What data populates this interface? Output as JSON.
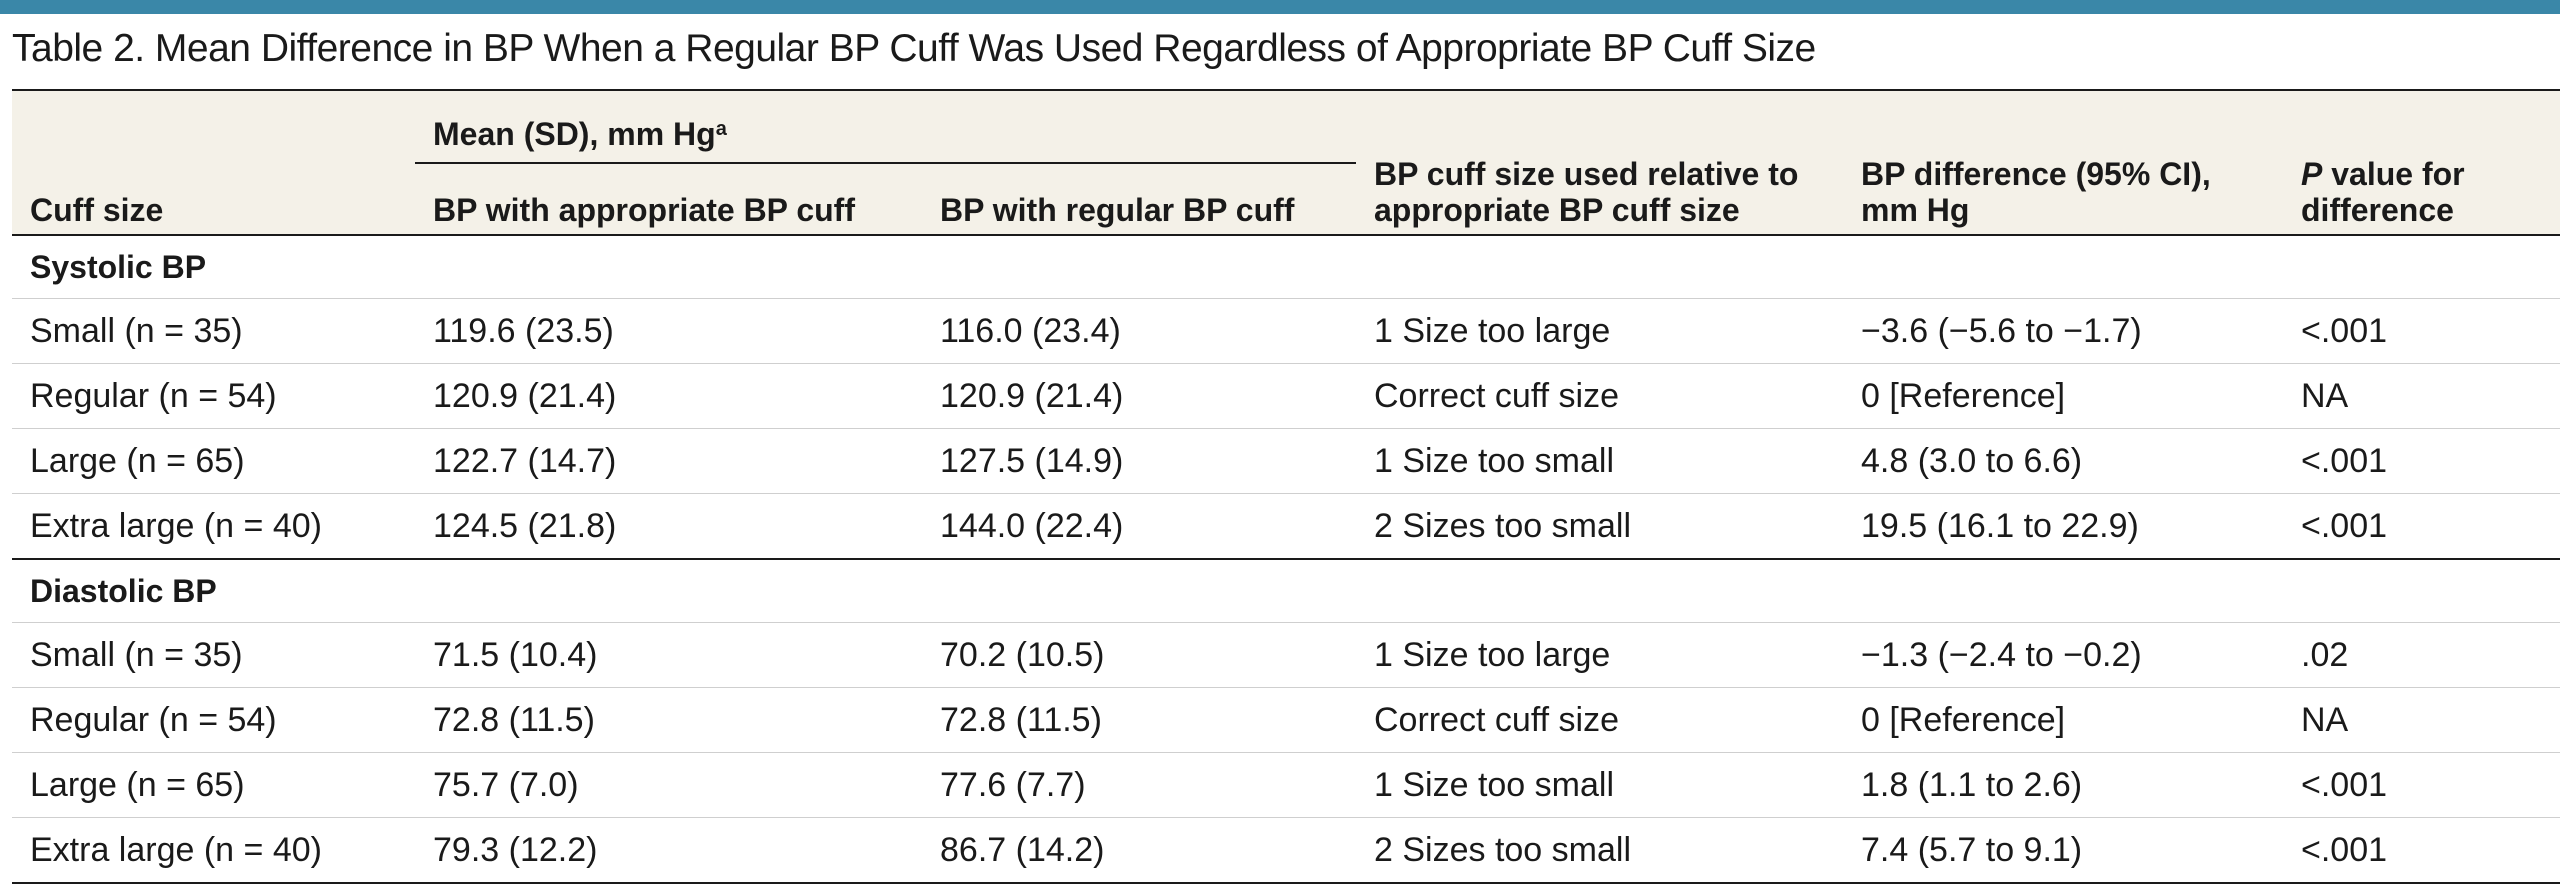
{
  "caption": "Table 2. Mean Difference in BP When a Regular BP Cuff Was Used Regardless of Appropriate BP Cuff Size",
  "header": {
    "cuff_size": "Cuff size",
    "mean_sd": "Mean (SD), mm Hg",
    "mean_sd_footnote": "a",
    "bp_appropriate": "BP with appropriate BP cuff",
    "bp_regular": "BP with regular BP cuff",
    "relative": "BP cuff size used relative to appropriate BP cuff size",
    "difference": "BP difference (95% CI), mm Hg",
    "p_value_italic": "P",
    "p_value_rest": " value for difference"
  },
  "sections": [
    {
      "title": "Systolic BP",
      "rows": [
        [
          "Small (n = 35)",
          "119.6 (23.5)",
          "116.0 (23.4)",
          "1 Size too large",
          "−3.6 (−5.6 to −1.7)",
          "<.001"
        ],
        [
          "Regular (n = 54)",
          "120.9 (21.4)",
          "120.9 (21.4)",
          "Correct cuff size",
          "0 [Reference]",
          "NA"
        ],
        [
          "Large (n = 65)",
          "122.7 (14.7)",
          "127.5 (14.9)",
          "1 Size too small",
          "4.8 (3.0 to 6.6)",
          "<.001"
        ],
        [
          "Extra large (n = 40)",
          "124.5 (21.8)",
          "144.0 (22.4)",
          "2 Sizes too small",
          "19.5 (16.1 to 22.9)",
          "<.001"
        ]
      ]
    },
    {
      "title": "Diastolic BP",
      "rows": [
        [
          "Small (n = 35)",
          "71.5 (10.4)",
          "70.2 (10.5)",
          "1 Size too large",
          "−1.3 (−2.4 to −0.2)",
          ".02"
        ],
        [
          "Regular (n = 54)",
          "72.8 (11.5)",
          "72.8 (11.5)",
          "Correct cuff size",
          "0 [Reference]",
          "NA"
        ],
        [
          "Large (n = 65)",
          "75.7 (7.0)",
          "77.6 (7.7)",
          "1 Size too small",
          "1.8 (1.1 to 2.6)",
          "<.001"
        ],
        [
          "Extra large (n = 40)",
          "79.3 (12.2)",
          "86.7 (14.2)",
          "2 Sizes too small",
          "7.4 (5.7 to 9.1)",
          "<.001"
        ]
      ]
    }
  ],
  "colors": {
    "top_bar": "#3a87a8",
    "header_background": "#f4f1e8",
    "rule": "#1a1a1a",
    "row_divider": "#cfcfcf"
  }
}
